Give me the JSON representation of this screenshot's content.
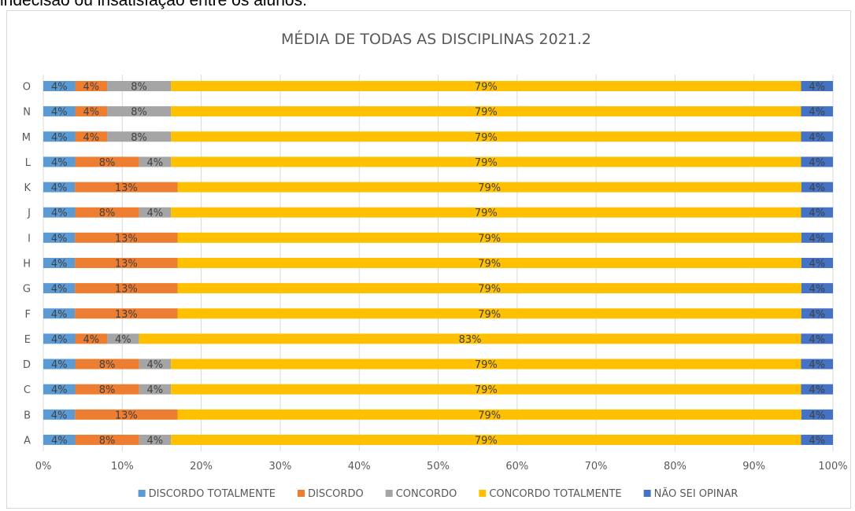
{
  "page": {
    "header_text": "indecisão ou insatisfação entre os alunos."
  },
  "chart_data": {
    "type": "bar",
    "orientation": "horizontal",
    "stacked": "percent",
    "title": "MÉDIA DE TODAS AS DISCIPLINAS 2021.2",
    "categories": [
      "A",
      "B",
      "C",
      "D",
      "E",
      "F",
      "G",
      "H",
      "I",
      "J",
      "K",
      "L",
      "M",
      "N",
      "O"
    ],
    "series": [
      {
        "name": "DISCORDO TOTALMENTE",
        "color": "#5b9bd5",
        "values": [
          4,
          4,
          4,
          4,
          4,
          4,
          4,
          4,
          4,
          4,
          4,
          4,
          4,
          4,
          4
        ]
      },
      {
        "name": "DISCORDO",
        "color": "#ed7d31",
        "values": [
          8,
          13,
          8,
          8,
          4,
          13,
          13,
          13,
          13,
          8,
          13,
          8,
          4,
          4,
          4
        ]
      },
      {
        "name": "CONCORDO",
        "color": "#a5a5a5",
        "values": [
          4,
          null,
          4,
          4,
          4,
          null,
          null,
          null,
          null,
          4,
          null,
          4,
          8,
          8,
          8
        ]
      },
      {
        "name": "CONCORDO TOTALMENTE",
        "color": "#ffc000",
        "values": [
          79,
          79,
          79,
          79,
          83,
          79,
          79,
          79,
          79,
          79,
          79,
          79,
          79,
          79,
          79
        ]
      },
      {
        "name": "NÃO SEI OPINAR",
        "color": "#4472c4",
        "values": [
          4,
          4,
          4,
          4,
          4,
          4,
          4,
          4,
          4,
          4,
          4,
          4,
          4,
          4,
          4
        ]
      }
    ],
    "value_suffix": "%",
    "x_ticks": [
      "0%",
      "10%",
      "20%",
      "30%",
      "40%",
      "50%",
      "60%",
      "70%",
      "80%",
      "90%",
      "100%"
    ],
    "xlim": [
      0,
      100
    ],
    "grid": true,
    "legend_position": "bottom"
  }
}
